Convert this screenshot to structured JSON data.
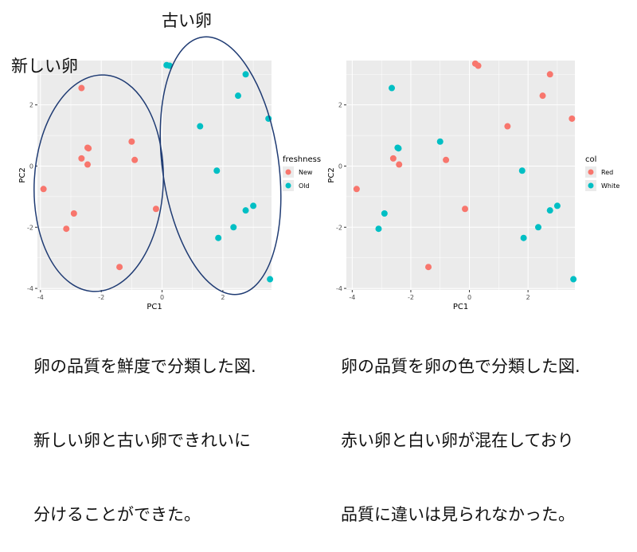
{
  "colors": {
    "red": "#F8766D",
    "teal": "#00BFC4",
    "panel": "#EBEBEB",
    "grid": "#FFFFFF",
    "ellipse": "#1F3B73"
  },
  "chart_data": [
    {
      "type": "scatter",
      "xlabel": "PC1",
      "ylabel": "PC2",
      "xlim": [
        -4.1,
        3.6
      ],
      "ylim": [
        -4.05,
        3.45
      ],
      "x_ticks": [
        -4,
        -2,
        0,
        2
      ],
      "y_ticks": [
        -4,
        -2,
        0,
        2
      ],
      "grid": true,
      "legend": {
        "title": "freshness",
        "placement": "right"
      },
      "series": [
        {
          "name": "New",
          "color": "#F8766D",
          "points": [
            [
              -2.65,
              2.55
            ],
            [
              -2.45,
              0.6
            ],
            [
              -2.42,
              0.58
            ],
            [
              -2.65,
              0.25
            ],
            [
              -2.45,
              0.05
            ],
            [
              -1.0,
              0.8
            ],
            [
              -0.9,
              0.2
            ],
            [
              -3.9,
              -0.75
            ],
            [
              -2.9,
              -1.55
            ],
            [
              -3.15,
              -2.05
            ],
            [
              -0.2,
              -1.4
            ],
            [
              -1.4,
              -3.3
            ]
          ]
        },
        {
          "name": "Old",
          "color": "#00BFC4",
          "points": [
            [
              0.15,
              3.3
            ],
            [
              0.25,
              3.28
            ],
            [
              2.75,
              3.0
            ],
            [
              2.5,
              2.3
            ],
            [
              3.5,
              1.55
            ],
            [
              1.25,
              1.3
            ],
            [
              1.8,
              -0.15
            ],
            [
              3.0,
              -1.3
            ],
            [
              2.75,
              -1.45
            ],
            [
              2.35,
              -2.0
            ],
            [
              1.85,
              -2.35
            ],
            [
              3.55,
              -3.7
            ]
          ]
        }
      ],
      "annotations": [
        {
          "text": "新しい卵"
        },
        {
          "text": "古い卵"
        }
      ]
    },
    {
      "type": "scatter",
      "xlabel": "PC1",
      "ylabel": "PC2",
      "xlim": [
        -4.2,
        3.6
      ],
      "ylim": [
        -4.05,
        3.45
      ],
      "x_ticks": [
        -4,
        -2,
        0,
        2
      ],
      "y_ticks": [
        -4,
        -2,
        0,
        2
      ],
      "grid": true,
      "legend": {
        "title": "col",
        "placement": "right"
      },
      "series": [
        {
          "name": "Red",
          "color": "#F8766D",
          "points": [
            [
              0.2,
              3.35
            ],
            [
              0.3,
              3.28
            ],
            [
              2.75,
              3.0
            ],
            [
              2.5,
              2.3
            ],
            [
              3.5,
              1.55
            ],
            [
              1.3,
              1.3
            ],
            [
              -2.6,
              0.25
            ],
            [
              -2.4,
              0.05
            ],
            [
              -0.8,
              0.2
            ],
            [
              -3.85,
              -0.75
            ],
            [
              -0.15,
              -1.4
            ],
            [
              -1.4,
              -3.3
            ]
          ]
        },
        {
          "name": "White",
          "color": "#00BFC4",
          "points": [
            [
              -2.65,
              2.55
            ],
            [
              -2.45,
              0.6
            ],
            [
              -2.42,
              0.58
            ],
            [
              -1.0,
              0.8
            ],
            [
              1.8,
              -0.15
            ],
            [
              3.0,
              -1.3
            ],
            [
              2.75,
              -1.45
            ],
            [
              -2.9,
              -1.55
            ],
            [
              -3.1,
              -2.05
            ],
            [
              2.35,
              -2.0
            ],
            [
              1.85,
              -2.35
            ],
            [
              3.55,
              -3.7
            ]
          ]
        }
      ]
    }
  ],
  "captions": {
    "left": [
      "卵の品質を鮮度で分類した図.",
      "新しい卵と古い卵できれいに",
      "分けることができた。"
    ],
    "right": [
      "卵の品質を卵の色で分類した図.",
      "赤い卵と白い卵が混在しており",
      "品質に違いは見られなかった。"
    ]
  }
}
